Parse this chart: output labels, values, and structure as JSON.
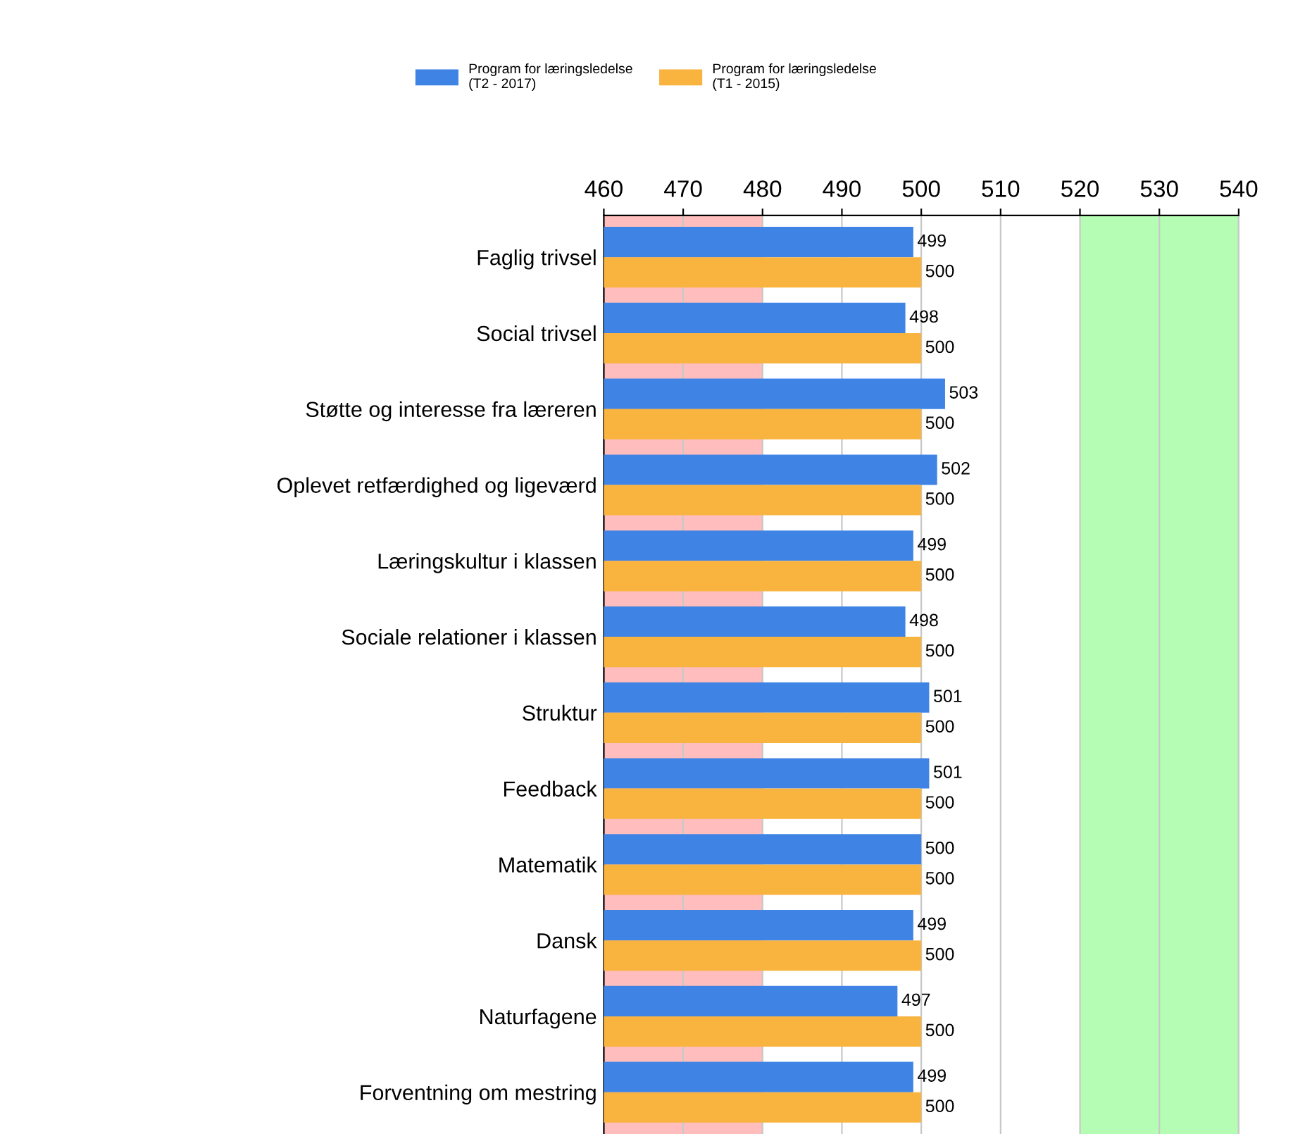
{
  "chart_data": {
    "type": "bar",
    "orientation": "horizontal",
    "categories": [
      "Faglig trivsel",
      "Social trivsel",
      "Støtte og interesse fra læreren",
      "Oplevet retfærdighed og ligeværd",
      "Læringskultur i klassen",
      "Sociale relationer i klassen",
      "Struktur",
      "Feedback",
      "Matematik",
      "Dansk",
      "Naturfagene",
      "Forventning om mestring"
    ],
    "series": [
      {
        "name": "Program for læringsledelse\n(T2 - 2017)",
        "color": "#3f84e5",
        "values": [
          499,
          498,
          503,
          502,
          499,
          498,
          501,
          501,
          500,
          499,
          497,
          499
        ]
      },
      {
        "name": "Program for læringsledelse\n(T1 - 2015)",
        "color": "#f9b33f",
        "values": [
          500,
          500,
          500,
          500,
          500,
          500,
          500,
          500,
          500,
          500,
          500,
          500
        ]
      }
    ],
    "xlim": [
      460,
      540
    ],
    "xticks": [
      460,
      470,
      480,
      490,
      500,
      510,
      520,
      530,
      540
    ],
    "bands": [
      {
        "axis": "x",
        "from": 460,
        "to": 480,
        "color": "#ffbdbd"
      },
      {
        "axis": "x",
        "from": 520,
        "to": 540,
        "color": "#b5fcb5"
      }
    ],
    "grid": "x",
    "legend": "top",
    "data_labels": true
  }
}
